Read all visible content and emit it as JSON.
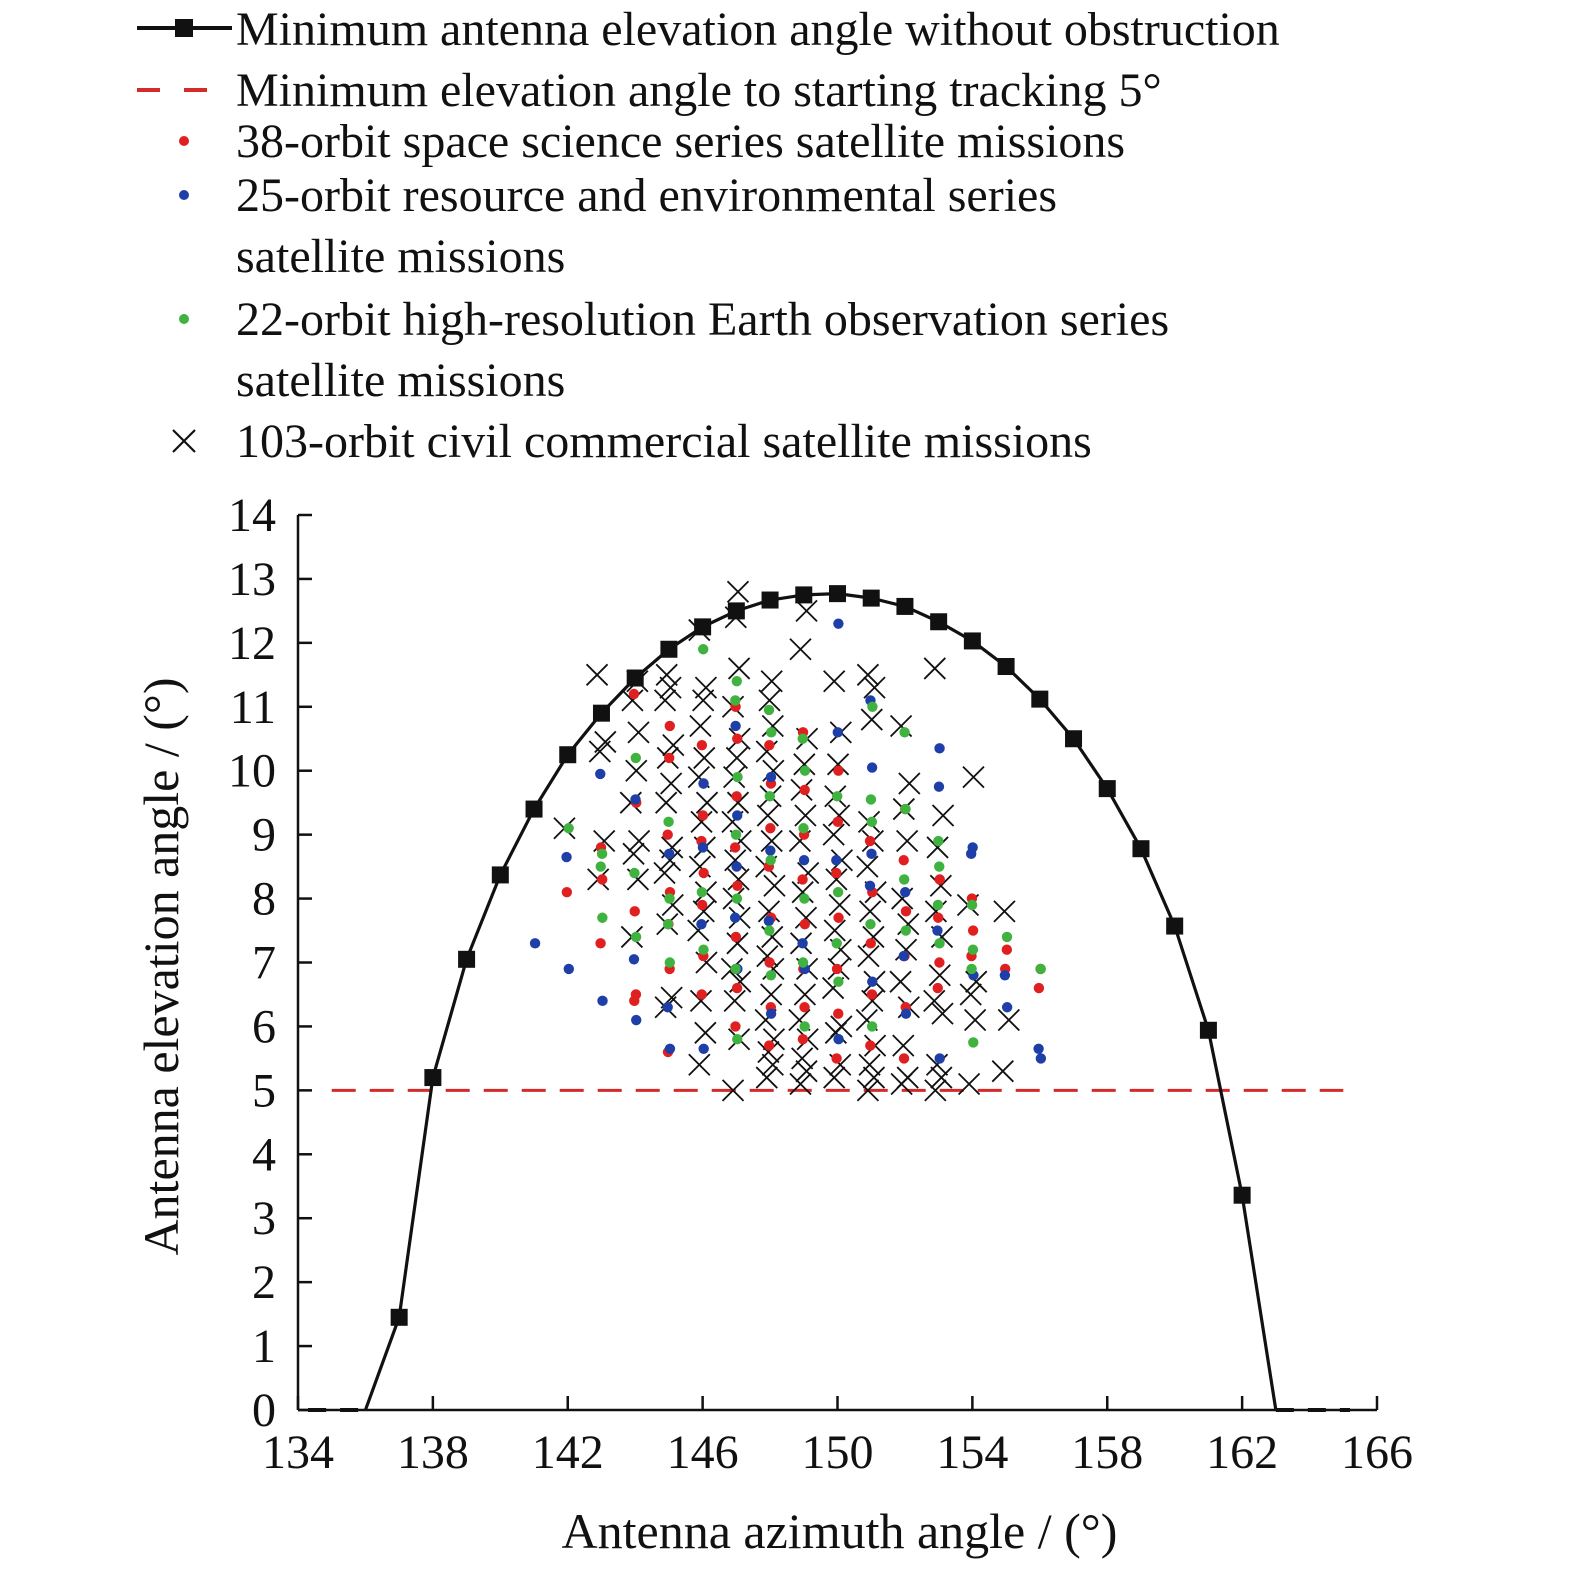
{
  "chart_data": {
    "type": "scatter",
    "title": "",
    "xlabel": "Antenna azimuth angle / (°)",
    "ylabel": "Antenna elevation angle / (°)",
    "xlim": [
      134,
      166
    ],
    "ylim": [
      0,
      14
    ],
    "xticks": [
      134,
      138,
      142,
      146,
      150,
      154,
      158,
      162,
      166
    ],
    "yticks": [
      0,
      1,
      2,
      3,
      4,
      5,
      6,
      7,
      8,
      9,
      10,
      11,
      12,
      13,
      14
    ],
    "colors": {
      "red": "#e02020",
      "blue": "#1f3fa8",
      "green": "#3fb23f",
      "black": "#111111",
      "dash": "#d42a2a"
    },
    "legend": [
      {
        "label": "Minimum antenna elevation angle without obstruction",
        "marker": "line-square",
        "color": "#111111"
      },
      {
        "label": "Minimum elevation angle to starting tracking 5°",
        "marker": "dash",
        "color": "#d42a2a"
      },
      {
        "label": "38-orbit space science series satellite missions",
        "marker": "dot",
        "color": "#e02020"
      },
      {
        "label": "25-orbit resource and environmental series satellite missions",
        "lines": [
          "25-orbit resource and environmental series",
          "satellite missions"
        ],
        "marker": "dot",
        "color": "#1f3fa8"
      },
      {
        "label": "22-orbit high-resolution Earth observation series satellite missions",
        "lines": [
          "22-orbit high-resolution Earth observation series",
          "satellite missions"
        ],
        "marker": "dot",
        "color": "#3fb23f"
      },
      {
        "label": "103-orbit civil commercial satellite missions",
        "marker": "cross",
        "color": "#111111"
      }
    ],
    "series": [
      {
        "name": "Minimum antenna elevation angle without obstruction",
        "style": "line-square",
        "x": [
          135,
          136,
          137,
          138,
          139,
          140,
          141,
          142,
          143,
          144,
          145,
          146,
          147,
          148,
          149,
          150,
          151,
          152,
          153,
          154,
          155,
          156,
          157,
          158,
          159,
          160,
          161,
          162,
          163,
          164,
          165
        ],
        "y": [
          0,
          0,
          1.45,
          5.2,
          7.05,
          8.37,
          9.4,
          10.25,
          10.9,
          11.45,
          11.9,
          12.25,
          12.5,
          12.67,
          12.75,
          12.77,
          12.7,
          12.57,
          12.33,
          12.03,
          11.63,
          11.12,
          10.5,
          9.72,
          8.78,
          7.57,
          5.94,
          3.36,
          0,
          0,
          0
        ],
        "dashed_ranges": [
          [
            134.3,
            136
          ],
          [
            163,
            165.2
          ]
        ]
      },
      {
        "name": "Minimum elevation angle to starting tracking 5°",
        "style": "dash",
        "x": [
          135,
          165
        ],
        "y": [
          5,
          5
        ]
      }
    ],
    "scatter_summary": {
      "38-orbit space science series satellite missions": {
        "x_range": [
          142,
          156
        ],
        "columns": [
          {
            "x": 142,
            "y": [
              8.1
            ]
          },
          {
            "x": 143,
            "y": [
              7.3,
              8.3,
              8.8
            ]
          },
          {
            "x": 144,
            "y": [
              6.4,
              6.5,
              7.8,
              9.5,
              11.2
            ]
          },
          {
            "x": 145,
            "y": [
              5.6,
              6.9,
              7.6,
              8.1,
              9.0,
              10.2,
              10.7
            ]
          },
          {
            "x": 146,
            "y": [
              6.5,
              7.1,
              7.9,
              8.4,
              8.9,
              9.3,
              9.8,
              10.4
            ]
          },
          {
            "x": 147,
            "y": [
              6.0,
              6.6,
              7.4,
              8.2,
              8.8,
              9.6,
              10.5,
              11.0
            ]
          },
          {
            "x": 148,
            "y": [
              5.7,
              6.3,
              7.0,
              7.7,
              8.5,
              9.1,
              9.8,
              10.4
            ]
          },
          {
            "x": 149,
            "y": [
              5.8,
              6.3,
              6.9,
              7.6,
              8.3,
              9.0,
              9.7,
              10.6
            ]
          },
          {
            "x": 150,
            "y": [
              5.5,
              6.2,
              6.9,
              7.7,
              8.4,
              9.2,
              10.0
            ]
          },
          {
            "x": 151,
            "y": [
              5.7,
              6.5,
              7.3,
              8.1,
              8.9
            ]
          },
          {
            "x": 152,
            "y": [
              5.5,
              6.3,
              7.1,
              7.8,
              8.6,
              9.4
            ]
          },
          {
            "x": 153,
            "y": [
              6.6,
              7.0,
              7.7,
              8.3
            ]
          },
          {
            "x": 154,
            "y": [
              7.1,
              7.5,
              8.0
            ]
          },
          {
            "x": 155,
            "y": [
              6.9,
              7.2
            ]
          },
          {
            "x": 156,
            "y": [
              6.6,
              6.9
            ]
          }
        ]
      },
      "25-orbit resource and environmental series satellite missions": {
        "x_range": [
          141,
          156
        ],
        "columns": [
          {
            "x": 141,
            "y": [
              7.3
            ]
          },
          {
            "x": 142,
            "y": [
              6.9,
              8.65
            ]
          },
          {
            "x": 143,
            "y": [
              6.4,
              9.95
            ]
          },
          {
            "x": 144,
            "y": [
              6.1,
              7.05,
              9.55
            ]
          },
          {
            "x": 145,
            "y": [
              5.65,
              6.3,
              8.7
            ]
          },
          {
            "x": 146,
            "y": [
              5.65,
              7.6,
              8.8,
              9.8
            ]
          },
          {
            "x": 147,
            "y": [
              6.9,
              7.7,
              8.5,
              9.3,
              10.7
            ]
          },
          {
            "x": 148,
            "y": [
              6.2,
              7.65,
              8.75,
              9.9
            ]
          },
          {
            "x": 149,
            "y": [
              6.9,
              7.3,
              8.6
            ]
          },
          {
            "x": 150,
            "y": [
              5.8,
              8.6,
              10.6,
              12.3
            ]
          },
          {
            "x": 151,
            "y": [
              6.7,
              8.2,
              8.7,
              10.05,
              11.1
            ]
          },
          {
            "x": 152,
            "y": [
              6.2,
              7.1,
              8.1
            ]
          },
          {
            "x": 153,
            "y": [
              5.5,
              7.5,
              9.75,
              10.35
            ]
          },
          {
            "x": 154,
            "y": [
              6.8,
              8.7,
              8.8
            ]
          },
          {
            "x": 155,
            "y": [
              6.3,
              6.8
            ]
          },
          {
            "x": 156,
            "y": [
              5.5,
              5.65
            ]
          }
        ]
      },
      "22-orbit high-resolution Earth observation series satellite missions": {
        "x_range": [
          142,
          156
        ],
        "columns": [
          {
            "x": 142,
            "y": [
              9.1
            ]
          },
          {
            "x": 143,
            "y": [
              7.7,
              8.5,
              8.7
            ]
          },
          {
            "x": 144,
            "y": [
              7.4,
              8.4,
              10.2
            ]
          },
          {
            "x": 145,
            "y": [
              7.0,
              7.6,
              8.0,
              9.2
            ]
          },
          {
            "x": 146,
            "y": [
              7.2,
              8.1,
              11.9
            ]
          },
          {
            "x": 147,
            "y": [
              5.8,
              6.9,
              8.0,
              9.0,
              9.9,
              11.1,
              11.4
            ]
          },
          {
            "x": 148,
            "y": [
              6.8,
              7.5,
              8.6,
              9.6,
              10.6,
              10.95
            ]
          },
          {
            "x": 149,
            "y": [
              6.0,
              7.0,
              8.0,
              9.1,
              10.0,
              10.5
            ]
          },
          {
            "x": 150,
            "y": [
              6.7,
              7.3,
              8.1,
              9.6
            ]
          },
          {
            "x": 151,
            "y": [
              6.0,
              7.6,
              9.2,
              9.55,
              11.0
            ]
          },
          {
            "x": 152,
            "y": [
              7.5,
              8.3,
              9.4,
              10.6
            ]
          },
          {
            "x": 153,
            "y": [
              7.3,
              7.9,
              8.5,
              8.9
            ]
          },
          {
            "x": 154,
            "y": [
              5.75,
              6.9,
              7.2,
              7.9
            ]
          },
          {
            "x": 155,
            "y": [
              7.4
            ]
          },
          {
            "x": 156,
            "y": [
              6.9
            ]
          }
        ]
      },
      "103-orbit civil commercial satellite missions": {
        "x_range": [
          142,
          155
        ],
        "columns": [
          {
            "x": 142,
            "y": [
              9.1
            ]
          },
          {
            "x": 143,
            "y": [
              8.3,
              8.9,
              10.3,
              10.45,
              11.5
            ]
          },
          {
            "x": 144,
            "y": [
              7.4,
              8.3,
              8.7,
              8.9,
              9.5,
              10.0,
              10.6,
              11.1,
              11.4
            ]
          },
          {
            "x": 145,
            "y": [
              6.3,
              6.45,
              7.6,
              7.9,
              8.4,
              8.6,
              8.8,
              9.5,
              9.8,
              10.2,
              10.4,
              11.1,
              11.3,
              11.5
            ]
          },
          {
            "x": 146,
            "y": [
              5.4,
              5.9,
              6.4,
              7.0,
              7.5,
              7.8,
              8.1,
              8.5,
              8.8,
              9.2,
              9.5,
              9.9,
              10.2,
              10.7,
              11.1,
              11.3,
              12.2
            ]
          },
          {
            "x": 147,
            "y": [
              5.0,
              5.8,
              6.4,
              6.7,
              6.9,
              7.3,
              7.7,
              8.0,
              8.3,
              8.6,
              8.9,
              9.2,
              9.5,
              9.9,
              10.2,
              10.5,
              11.0,
              11.6,
              12.4,
              12.8
            ]
          },
          {
            "x": 148,
            "y": [
              5.2,
              5.4,
              5.6,
              5.8,
              6.1,
              6.5,
              6.9,
              7.1,
              7.4,
              7.8,
              8.2,
              8.5,
              8.9,
              9.3,
              9.6,
              10.0,
              10.3,
              10.7,
              11.1,
              11.4
            ]
          },
          {
            "x": 149,
            "y": [
              5.1,
              5.3,
              5.5,
              5.8,
              6.1,
              6.5,
              6.9,
              7.3,
              7.7,
              8.1,
              8.4,
              8.9,
              9.3,
              9.7,
              10.1,
              10.5,
              11.9,
              12.5
            ]
          },
          {
            "x": 150,
            "y": [
              5.2,
              5.4,
              5.9,
              6.0,
              6.6,
              6.9,
              7.2,
              7.5,
              7.9,
              8.3,
              8.6,
              9.0,
              9.3,
              9.6,
              10.1,
              10.6,
              11.4
            ]
          },
          {
            "x": 151,
            "y": [
              5.0,
              5.2,
              5.4,
              5.7,
              6.1,
              6.4,
              6.7,
              7.1,
              7.4,
              7.8,
              8.1,
              8.5,
              8.9,
              9.2,
              10.8,
              11.3,
              11.5
            ]
          },
          {
            "x": 152,
            "y": [
              5.1,
              5.2,
              5.7,
              6.3,
              6.7,
              7.2,
              7.6,
              8.0,
              8.9,
              9.4,
              9.8,
              10.7
            ]
          },
          {
            "x": 153,
            "y": [
              5.0,
              5.2,
              5.4,
              6.2,
              6.4,
              6.8,
              7.4,
              7.8,
              8.2,
              8.8,
              9.3,
              11.6
            ]
          },
          {
            "x": 154,
            "y": [
              5.1,
              6.1,
              6.5,
              6.7,
              7.9,
              9.9
            ]
          },
          {
            "x": 155,
            "y": [
              5.3,
              6.1,
              7.8
            ]
          }
        ]
      }
    }
  }
}
